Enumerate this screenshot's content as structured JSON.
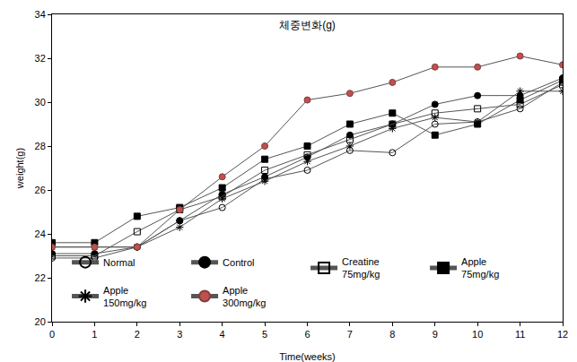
{
  "chart_data": {
    "type": "line",
    "title": "체중변화(g)",
    "x_label": "Time(weeks)",
    "y_label": "weight(g)",
    "x": [
      0,
      1,
      2,
      3,
      4,
      5,
      6,
      7,
      8,
      9,
      10,
      11,
      12
    ],
    "xlim": [
      0,
      12
    ],
    "xticks": [
      0,
      1,
      2,
      3,
      4,
      5,
      6,
      7,
      8,
      9,
      10,
      11,
      12
    ],
    "ylim": [
      20,
      34
    ],
    "yticks": [
      20,
      22,
      24,
      26,
      28,
      30,
      32,
      34
    ],
    "grid": false,
    "legend": "bottom",
    "series": [
      {
        "name": "Normal",
        "color": "#000000",
        "marker": "circle-open",
        "values": [
          22.9,
          22.9,
          23.4,
          24.6,
          25.2,
          26.5,
          26.9,
          27.8,
          27.7,
          29.0,
          29.1,
          29.7,
          30.9
        ]
      },
      {
        "name": "Control",
        "color": "#000000",
        "marker": "circle",
        "values": [
          23.1,
          23.1,
          23.4,
          24.6,
          25.8,
          26.6,
          27.5,
          28.5,
          29.0,
          29.9,
          30.3,
          30.3,
          31.1
        ]
      },
      {
        "name": "Creatine\n75mg/kg",
        "color": "#000000",
        "marker": "square-open",
        "values": [
          23.0,
          23.0,
          24.1,
          25.1,
          25.7,
          26.9,
          27.6,
          28.3,
          29.0,
          29.5,
          29.7,
          29.9,
          30.8
        ]
      },
      {
        "name": "Apple\n75mg/kg",
        "color": "#000000",
        "marker": "square",
        "values": [
          23.6,
          23.6,
          24.8,
          25.2,
          26.1,
          27.4,
          28.0,
          29.0,
          29.5,
          28.5,
          29.0,
          30.1,
          31.0
        ]
      },
      {
        "name": "Apple\n150mg/kg",
        "color": "#000000",
        "marker": "asterisk",
        "values": [
          23.4,
          23.4,
          23.4,
          24.3,
          25.6,
          26.4,
          27.3,
          28.0,
          28.8,
          29.3,
          29.1,
          30.5,
          30.5
        ]
      },
      {
        "name": "Apple\n300mg/kg",
        "color": "#c0504d",
        "marker": "circle",
        "values": [
          23.4,
          23.4,
          23.4,
          25.1,
          26.6,
          28.0,
          30.1,
          30.4,
          30.9,
          31.6,
          31.6,
          32.1,
          31.7
        ]
      }
    ]
  }
}
